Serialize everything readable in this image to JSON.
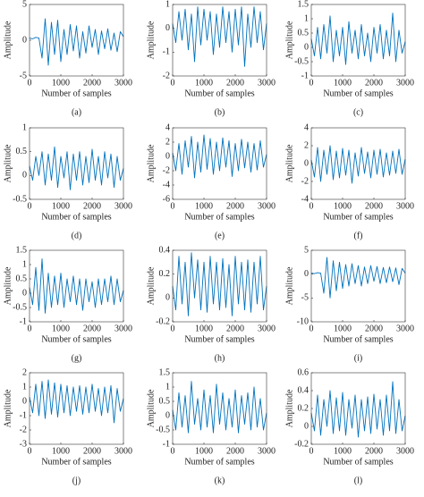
{
  "chart_data": [
    {
      "type": "line",
      "caption": "(a)",
      "x_label": "Number of samples",
      "y_label": "Amplitude",
      "xlim": [
        0,
        3000
      ],
      "xticks": [
        0,
        1000,
        2000,
        3000
      ],
      "ylim": [
        -5,
        5
      ],
      "yticks": [
        -5,
        0,
        5
      ],
      "color": "#0072bd",
      "x": [
        0,
        100,
        200,
        300,
        400,
        500,
        600,
        700,
        800,
        900,
        1000,
        1100,
        1200,
        1300,
        1400,
        1500,
        1600,
        1700,
        1800,
        1900,
        2000,
        2100,
        2200,
        2300,
        2400,
        2500,
        2600,
        2700,
        2800,
        2900,
        3000
      ],
      "values": [
        0.3,
        0.2,
        0.4,
        0.3,
        -2.5,
        3,
        -3.5,
        2.5,
        -2,
        2.8,
        -3,
        1.5,
        -2,
        2.2,
        -1.5,
        2,
        -2.5,
        1.2,
        -1.8,
        2,
        -1,
        1.5,
        -2,
        1.3,
        -1.2,
        1.6,
        -1.4,
        1,
        -1.6,
        1.2,
        0.5
      ]
    },
    {
      "type": "line",
      "caption": "(b)",
      "x_label": "Number of samples",
      "y_label": "Amplitude",
      "xlim": [
        0,
        3000
      ],
      "xticks": [
        0,
        1000,
        2000,
        3000
      ],
      "ylim": [
        -2,
        1
      ],
      "yticks": [
        -2,
        -1,
        0,
        1
      ],
      "color": "#0072bd",
      "x": [
        0,
        100,
        200,
        300,
        400,
        500,
        600,
        700,
        800,
        900,
        1000,
        1100,
        1200,
        1300,
        1400,
        1500,
        1600,
        1700,
        1800,
        1900,
        2000,
        2100,
        2200,
        2300,
        2400,
        2500,
        2600,
        2700,
        2800,
        2900,
        3000
      ],
      "values": [
        0.2,
        -0.6,
        0.7,
        -0.5,
        0.8,
        -0.9,
        0.6,
        -1.4,
        0.9,
        -0.7,
        0.8,
        -0.5,
        0.7,
        -1.1,
        0.6,
        -0.8,
        0.9,
        -0.6,
        0.7,
        -1.0,
        0.8,
        -0.7,
        0.9,
        -1.6,
        0.6,
        -0.8,
        0.9,
        -0.6,
        0.7,
        -0.9,
        0.2
      ]
    },
    {
      "type": "line",
      "caption": "(c)",
      "x_label": "Number of samples",
      "y_label": "Amplitude",
      "xlim": [
        0,
        3000
      ],
      "xticks": [
        0,
        1000,
        2000,
        3000
      ],
      "ylim": [
        -1,
        1.5
      ],
      "yticks": [
        -1,
        -0.5,
        0,
        0.5,
        1,
        1.5
      ],
      "color": "#0072bd",
      "x": [
        0,
        100,
        200,
        300,
        400,
        500,
        600,
        700,
        800,
        900,
        1000,
        1100,
        1200,
        1300,
        1400,
        1500,
        1600,
        1700,
        1800,
        1900,
        2000,
        2100,
        2200,
        2300,
        2400,
        2500,
        2600,
        2700,
        2800,
        2900,
        3000
      ],
      "values": [
        0.3,
        -0.3,
        0.7,
        -0.4,
        0.8,
        -0.2,
        1.1,
        -0.5,
        0.6,
        -0.3,
        0.7,
        -0.6,
        0.9,
        -0.2,
        0.6,
        -0.4,
        0.8,
        -0.3,
        0.5,
        -0.5,
        0.7,
        -0.2,
        0.8,
        -0.4,
        0.6,
        -0.3,
        1.2,
        -0.5,
        0.6,
        -0.2,
        0.2
      ]
    },
    {
      "type": "line",
      "caption": "(d)",
      "x_label": "Number of samples",
      "y_label": "Amplitude",
      "xlim": [
        0,
        3000
      ],
      "xticks": [
        0,
        1000,
        2000,
        3000
      ],
      "ylim": [
        -0.5,
        1
      ],
      "yticks": [
        -0.5,
        0,
        0.5,
        1
      ],
      "color": "#0072bd",
      "x": [
        0,
        100,
        200,
        300,
        400,
        500,
        600,
        700,
        800,
        900,
        1000,
        1100,
        1200,
        1300,
        1400,
        1500,
        1600,
        1700,
        1800,
        1900,
        2000,
        2100,
        2200,
        2300,
        2400,
        2500,
        2600,
        2700,
        2800,
        2900,
        3000
      ],
      "values": [
        0.2,
        -0.1,
        0.4,
        0,
        0.5,
        -0.2,
        0.45,
        -0.1,
        0.6,
        -0.25,
        0.4,
        -0.05,
        0.5,
        -0.3,
        0.45,
        -0.1,
        0.5,
        -0.2,
        0.4,
        -0.15,
        0.55,
        -0.1,
        0.4,
        -0.2,
        0.5,
        -0.05,
        0.45,
        -0.25,
        0.4,
        -0.1,
        0.15
      ]
    },
    {
      "type": "line",
      "caption": "(e)",
      "x_label": "Number of samples",
      "y_label": "Amplitude",
      "xlim": [
        0,
        3000
      ],
      "xticks": [
        0,
        1000,
        2000,
        3000
      ],
      "ylim": [
        -6,
        4
      ],
      "yticks": [
        -6,
        -4,
        -2,
        0,
        2,
        4
      ],
      "color": "#0072bd",
      "x": [
        0,
        100,
        200,
        300,
        400,
        500,
        600,
        700,
        800,
        900,
        1000,
        1100,
        1200,
        1300,
        1400,
        1500,
        1600,
        1700,
        1800,
        1900,
        2000,
        2100,
        2200,
        2300,
        2400,
        2500,
        2600,
        2700,
        2800,
        2900,
        3000
      ],
      "values": [
        0.5,
        -2,
        1.8,
        -2.5,
        2.2,
        -1.5,
        2.8,
        -3,
        2,
        -2.2,
        3,
        -1.8,
        2.5,
        -2.5,
        2,
        -2,
        2.6,
        -1.5,
        2.2,
        -2.8,
        1.8,
        -2,
        2.4,
        -1.6,
        2,
        -2.2,
        1.8,
        -1.9,
        2.2,
        -1.5,
        0.3
      ]
    },
    {
      "type": "line",
      "caption": "(f)",
      "x_label": "Number of samples",
      "y_label": "Amplitude",
      "xlim": [
        0,
        3000
      ],
      "xticks": [
        0,
        1000,
        2000,
        3000
      ],
      "ylim": [
        -4,
        4
      ],
      "yticks": [
        -4,
        -2,
        0,
        2,
        4
      ],
      "color": "#0072bd",
      "x": [
        0,
        100,
        200,
        300,
        400,
        500,
        600,
        700,
        800,
        900,
        1000,
        1100,
        1200,
        1300,
        1400,
        1500,
        1600,
        1700,
        1800,
        1900,
        2000,
        2100,
        2200,
        2300,
        2400,
        2500,
        2600,
        2700,
        2800,
        2900,
        3000
      ],
      "values": [
        0.4,
        -1.5,
        1.8,
        -2,
        1.5,
        -1.2,
        2,
        -1.8,
        1.4,
        -1.6,
        1.7,
        -1.3,
        1.5,
        -2.2,
        1.2,
        -1.4,
        1.8,
        -1.1,
        1.3,
        -1.6,
        1.5,
        -1.2,
        1.6,
        -1.5,
        1.2,
        -1.3,
        1.4,
        -1.1,
        1.6,
        -1.2,
        0.5
      ]
    },
    {
      "type": "line",
      "caption": "(g)",
      "x_label": "Number of samples",
      "y_label": "Amplitude",
      "xlim": [
        0,
        3000
      ],
      "xticks": [
        0,
        1000,
        2000,
        3000
      ],
      "ylim": [
        -1,
        1.5
      ],
      "yticks": [
        -1,
        -0.5,
        0,
        0.5,
        1,
        1.5
      ],
      "color": "#0072bd",
      "x": [
        0,
        100,
        200,
        300,
        400,
        500,
        600,
        700,
        800,
        900,
        1000,
        1100,
        1200,
        1300,
        1400,
        1500,
        1600,
        1700,
        1800,
        1900,
        2000,
        2100,
        2200,
        2300,
        2400,
        2500,
        2600,
        2700,
        2800,
        2900,
        3000
      ],
      "values": [
        0.2,
        -0.4,
        0.9,
        -0.6,
        1.2,
        -0.7,
        0.7,
        -0.5,
        0.6,
        -0.4,
        0.7,
        -0.5,
        0.5,
        -0.3,
        0.6,
        -0.4,
        0.5,
        -0.6,
        0.5,
        -0.3,
        0.4,
        -0.5,
        0.5,
        -0.4,
        0.5,
        -0.3,
        0.6,
        -0.4,
        0.5,
        -0.3,
        0.1
      ]
    },
    {
      "type": "line",
      "caption": "(h)",
      "x_label": "Number of samples",
      "y_label": "Amplitude",
      "xlim": [
        0,
        3000
      ],
      "xticks": [
        0,
        1000,
        2000,
        3000
      ],
      "ylim": [
        -0.2,
        0.4
      ],
      "yticks": [
        -0.2,
        0,
        0.2,
        0.4
      ],
      "color": "#0072bd",
      "x": [
        0,
        100,
        200,
        300,
        400,
        500,
        600,
        700,
        800,
        900,
        1000,
        1100,
        1200,
        1300,
        1400,
        1500,
        1600,
        1700,
        1800,
        1900,
        2000,
        2100,
        2200,
        2300,
        2400,
        2500,
        2600,
        2700,
        2800,
        2900,
        3000
      ],
      "values": [
        0.1,
        -0.1,
        0.35,
        -0.05,
        0.3,
        -0.15,
        0.38,
        0,
        0.32,
        -0.1,
        0.3,
        -0.12,
        0.35,
        -0.05,
        0.3,
        -0.1,
        0.33,
        -0.08,
        0.28,
        -0.15,
        0.35,
        -0.05,
        0.3,
        -0.1,
        0.32,
        -0.12,
        0.3,
        -0.05,
        0.35,
        -0.1,
        0.1
      ]
    },
    {
      "type": "line",
      "caption": "(i)",
      "x_label": "Number of samples",
      "y_label": "Amplitude",
      "xlim": [
        0,
        3000
      ],
      "xticks": [
        0,
        1000,
        2000,
        3000
      ],
      "ylim": [
        -10,
        5
      ],
      "yticks": [
        -10,
        -5,
        0,
        5
      ],
      "color": "#0072bd",
      "x": [
        0,
        100,
        200,
        300,
        400,
        500,
        600,
        700,
        800,
        900,
        1000,
        1100,
        1200,
        1300,
        1400,
        1500,
        1600,
        1700,
        1800,
        1900,
        2000,
        2100,
        2200,
        2300,
        2400,
        2500,
        2600,
        2700,
        2800,
        2900,
        3000
      ],
      "values": [
        0.2,
        0.1,
        0.3,
        0.2,
        -4,
        3.5,
        -5,
        2.8,
        -3.5,
        2.5,
        -3,
        2,
        -2.5,
        2.2,
        -2,
        1.8,
        -2.5,
        1.5,
        -2,
        1.8,
        -1.5,
        1.6,
        -2,
        1.4,
        -1.8,
        1.5,
        -1.6,
        1.3,
        -2.2,
        1.2,
        0.2
      ]
    },
    {
      "type": "line",
      "caption": "(j)",
      "x_label": "Number of samples",
      "y_label": "Amplitude",
      "xlim": [
        0,
        3000
      ],
      "xticks": [
        0,
        1000,
        2000,
        3000
      ],
      "ylim": [
        -3,
        2
      ],
      "yticks": [
        -3,
        -2,
        -1,
        0,
        1,
        2
      ],
      "color": "#0072bd",
      "x": [
        0,
        100,
        200,
        300,
        400,
        500,
        600,
        700,
        800,
        900,
        1000,
        1100,
        1200,
        1300,
        1400,
        1500,
        1600,
        1700,
        1800,
        1900,
        2000,
        2100,
        2200,
        2300,
        2400,
        2500,
        2600,
        2700,
        2800,
        2900,
        3000
      ],
      "values": [
        0.3,
        -0.8,
        1.2,
        -1,
        1.4,
        -1.2,
        1.5,
        -0.9,
        1.3,
        -1.1,
        1.2,
        -0.8,
        1.1,
        -1,
        1,
        -0.7,
        1.1,
        -0.9,
        1,
        -0.8,
        1.2,
        -0.7,
        0.9,
        -1,
        1,
        -0.8,
        1.1,
        -1.5,
        0.9,
        -0.7,
        0.2
      ]
    },
    {
      "type": "line",
      "caption": "(k)",
      "x_label": "Number of samples",
      "y_label": "Amplitude",
      "xlim": [
        0,
        3000
      ],
      "xticks": [
        0,
        1000,
        2000,
        3000
      ],
      "ylim": [
        -1,
        1.5
      ],
      "yticks": [
        -1,
        -0.5,
        0,
        0.5,
        1,
        1.5
      ],
      "color": "#0072bd",
      "x": [
        0,
        100,
        200,
        300,
        400,
        500,
        600,
        700,
        800,
        900,
        1000,
        1100,
        1200,
        1300,
        1400,
        1500,
        1600,
        1700,
        1800,
        1900,
        2000,
        2100,
        2200,
        2300,
        2400,
        2500,
        2600,
        2700,
        2800,
        2900,
        3000
      ],
      "values": [
        0.2,
        -0.5,
        0.8,
        -0.4,
        0.7,
        -0.6,
        1.2,
        -0.3,
        0.6,
        -0.5,
        0.9,
        -0.4,
        0.7,
        -0.6,
        1.1,
        -0.3,
        0.8,
        -0.5,
        0.6,
        -0.4,
        0.9,
        -0.6,
        0.7,
        -0.3,
        0.8,
        -0.5,
        1.0,
        -0.4,
        0.6,
        -0.5,
        0.1
      ]
    },
    {
      "type": "line",
      "caption": "(l)",
      "x_label": "Number of samples",
      "y_label": "Amplitude",
      "xlim": [
        0,
        3000
      ],
      "xticks": [
        0,
        1000,
        2000,
        3000
      ],
      "ylim": [
        -0.2,
        0.6
      ],
      "yticks": [
        -0.2,
        0,
        0.2,
        0.4,
        0.6
      ],
      "color": "#0072bd",
      "x": [
        0,
        100,
        200,
        300,
        400,
        500,
        600,
        700,
        800,
        900,
        1000,
        1100,
        1200,
        1300,
        1400,
        1500,
        1600,
        1700,
        1800,
        1900,
        2000,
        2100,
        2200,
        2300,
        2400,
        2500,
        2600,
        2700,
        2800,
        2900,
        3000
      ],
      "values": [
        0.15,
        -0.05,
        0.35,
        -0.1,
        0.3,
        0,
        0.4,
        -0.08,
        0.32,
        -0.05,
        0.38,
        -0.1,
        0.3,
        -0.02,
        0.35,
        -0.12,
        0.3,
        -0.05,
        0.33,
        -0.08,
        0.36,
        -0.03,
        0.3,
        -0.1,
        0.35,
        -0.05,
        0.5,
        -0.08,
        0.3,
        -0.05,
        0.12
      ]
    }
  ]
}
